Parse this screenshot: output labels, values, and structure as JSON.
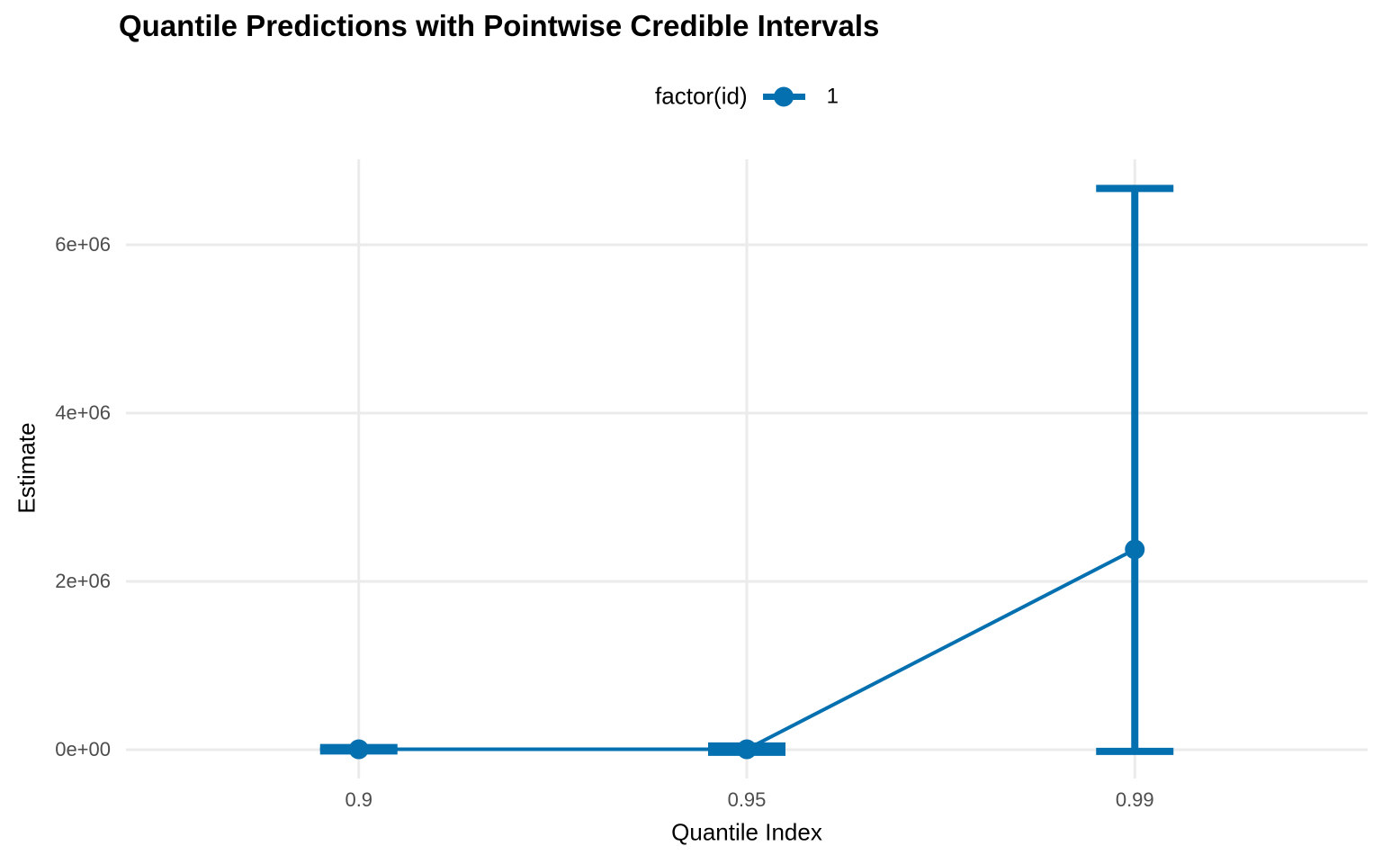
{
  "chart_data": {
    "type": "line",
    "title": "Quantile Predictions with Pointwise Credible Intervals",
    "xlabel": "Quantile Index",
    "ylabel": "Estimate",
    "legend": {
      "title": "factor(id)",
      "position": "top",
      "entries": [
        {
          "label": "1",
          "color": "#0570b0"
        }
      ]
    },
    "x_categories": [
      "0.9",
      "0.95",
      "0.99"
    ],
    "x_values": [
      0.9,
      0.95,
      0.99
    ],
    "series": [
      {
        "name": "1",
        "color": "#0570b0",
        "estimate": [
          5000,
          5000,
          2380000
        ],
        "lower": [
          -15000,
          -30000,
          -20000
        ],
        "upper": [
          25000,
          45000,
          6670000
        ]
      }
    ],
    "y_ticks": [
      0,
      2000000,
      4000000,
      6000000
    ],
    "y_tick_labels": [
      "0e+00",
      "2e+06",
      "4e+06",
      "6e+06"
    ],
    "ylim": [
      -342000,
      7016000
    ],
    "grid": "major-only",
    "colors": {
      "accent": "#0570b0",
      "gridline": "#ebebeb",
      "tick_text": "#4d4d4d",
      "text": "#000000",
      "background": "#ffffff"
    }
  }
}
